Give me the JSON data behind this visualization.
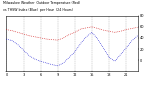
{
  "hours": [
    0,
    1,
    2,
    3,
    4,
    5,
    6,
    7,
    8,
    9,
    10,
    11,
    12,
    13,
    14,
    15,
    16,
    17,
    18,
    19,
    20,
    21,
    22,
    23
  ],
  "temp_red": [
    55,
    53,
    50,
    47,
    44,
    42,
    40,
    38,
    37,
    36,
    40,
    46,
    50,
    56,
    58,
    60,
    57,
    54,
    52,
    50,
    52,
    55,
    57,
    59
  ],
  "thsw_blue": [
    38,
    35,
    28,
    18,
    8,
    2,
    -2,
    -5,
    -8,
    -10,
    -5,
    5,
    15,
    30,
    42,
    50,
    38,
    22,
    5,
    -2,
    10,
    22,
    35,
    44
  ],
  "bg_color": "#ffffff",
  "red_color": "#cc0000",
  "blue_color": "#0000cc",
  "grid_color": "#888888",
  "title_line1": "Milwaukee Weather  Outdoor Temperature (Red)",
  "title_line2": "vs THSW Index (Blue)  per Hour  (24 Hours)",
  "ylim": [
    -20,
    80
  ],
  "xlim": [
    0,
    23
  ],
  "ytick_vals": [
    0,
    20,
    40,
    60,
    80
  ],
  "ytick_labels": [
    "0",
    "20",
    "40",
    "60",
    "80"
  ],
  "xtick_vals": [
    0,
    3,
    6,
    9,
    12,
    15,
    18,
    21
  ],
  "xtick_labels": [
    "0",
    "3",
    "6",
    "9",
    "12",
    "15",
    "18",
    "21"
  ]
}
